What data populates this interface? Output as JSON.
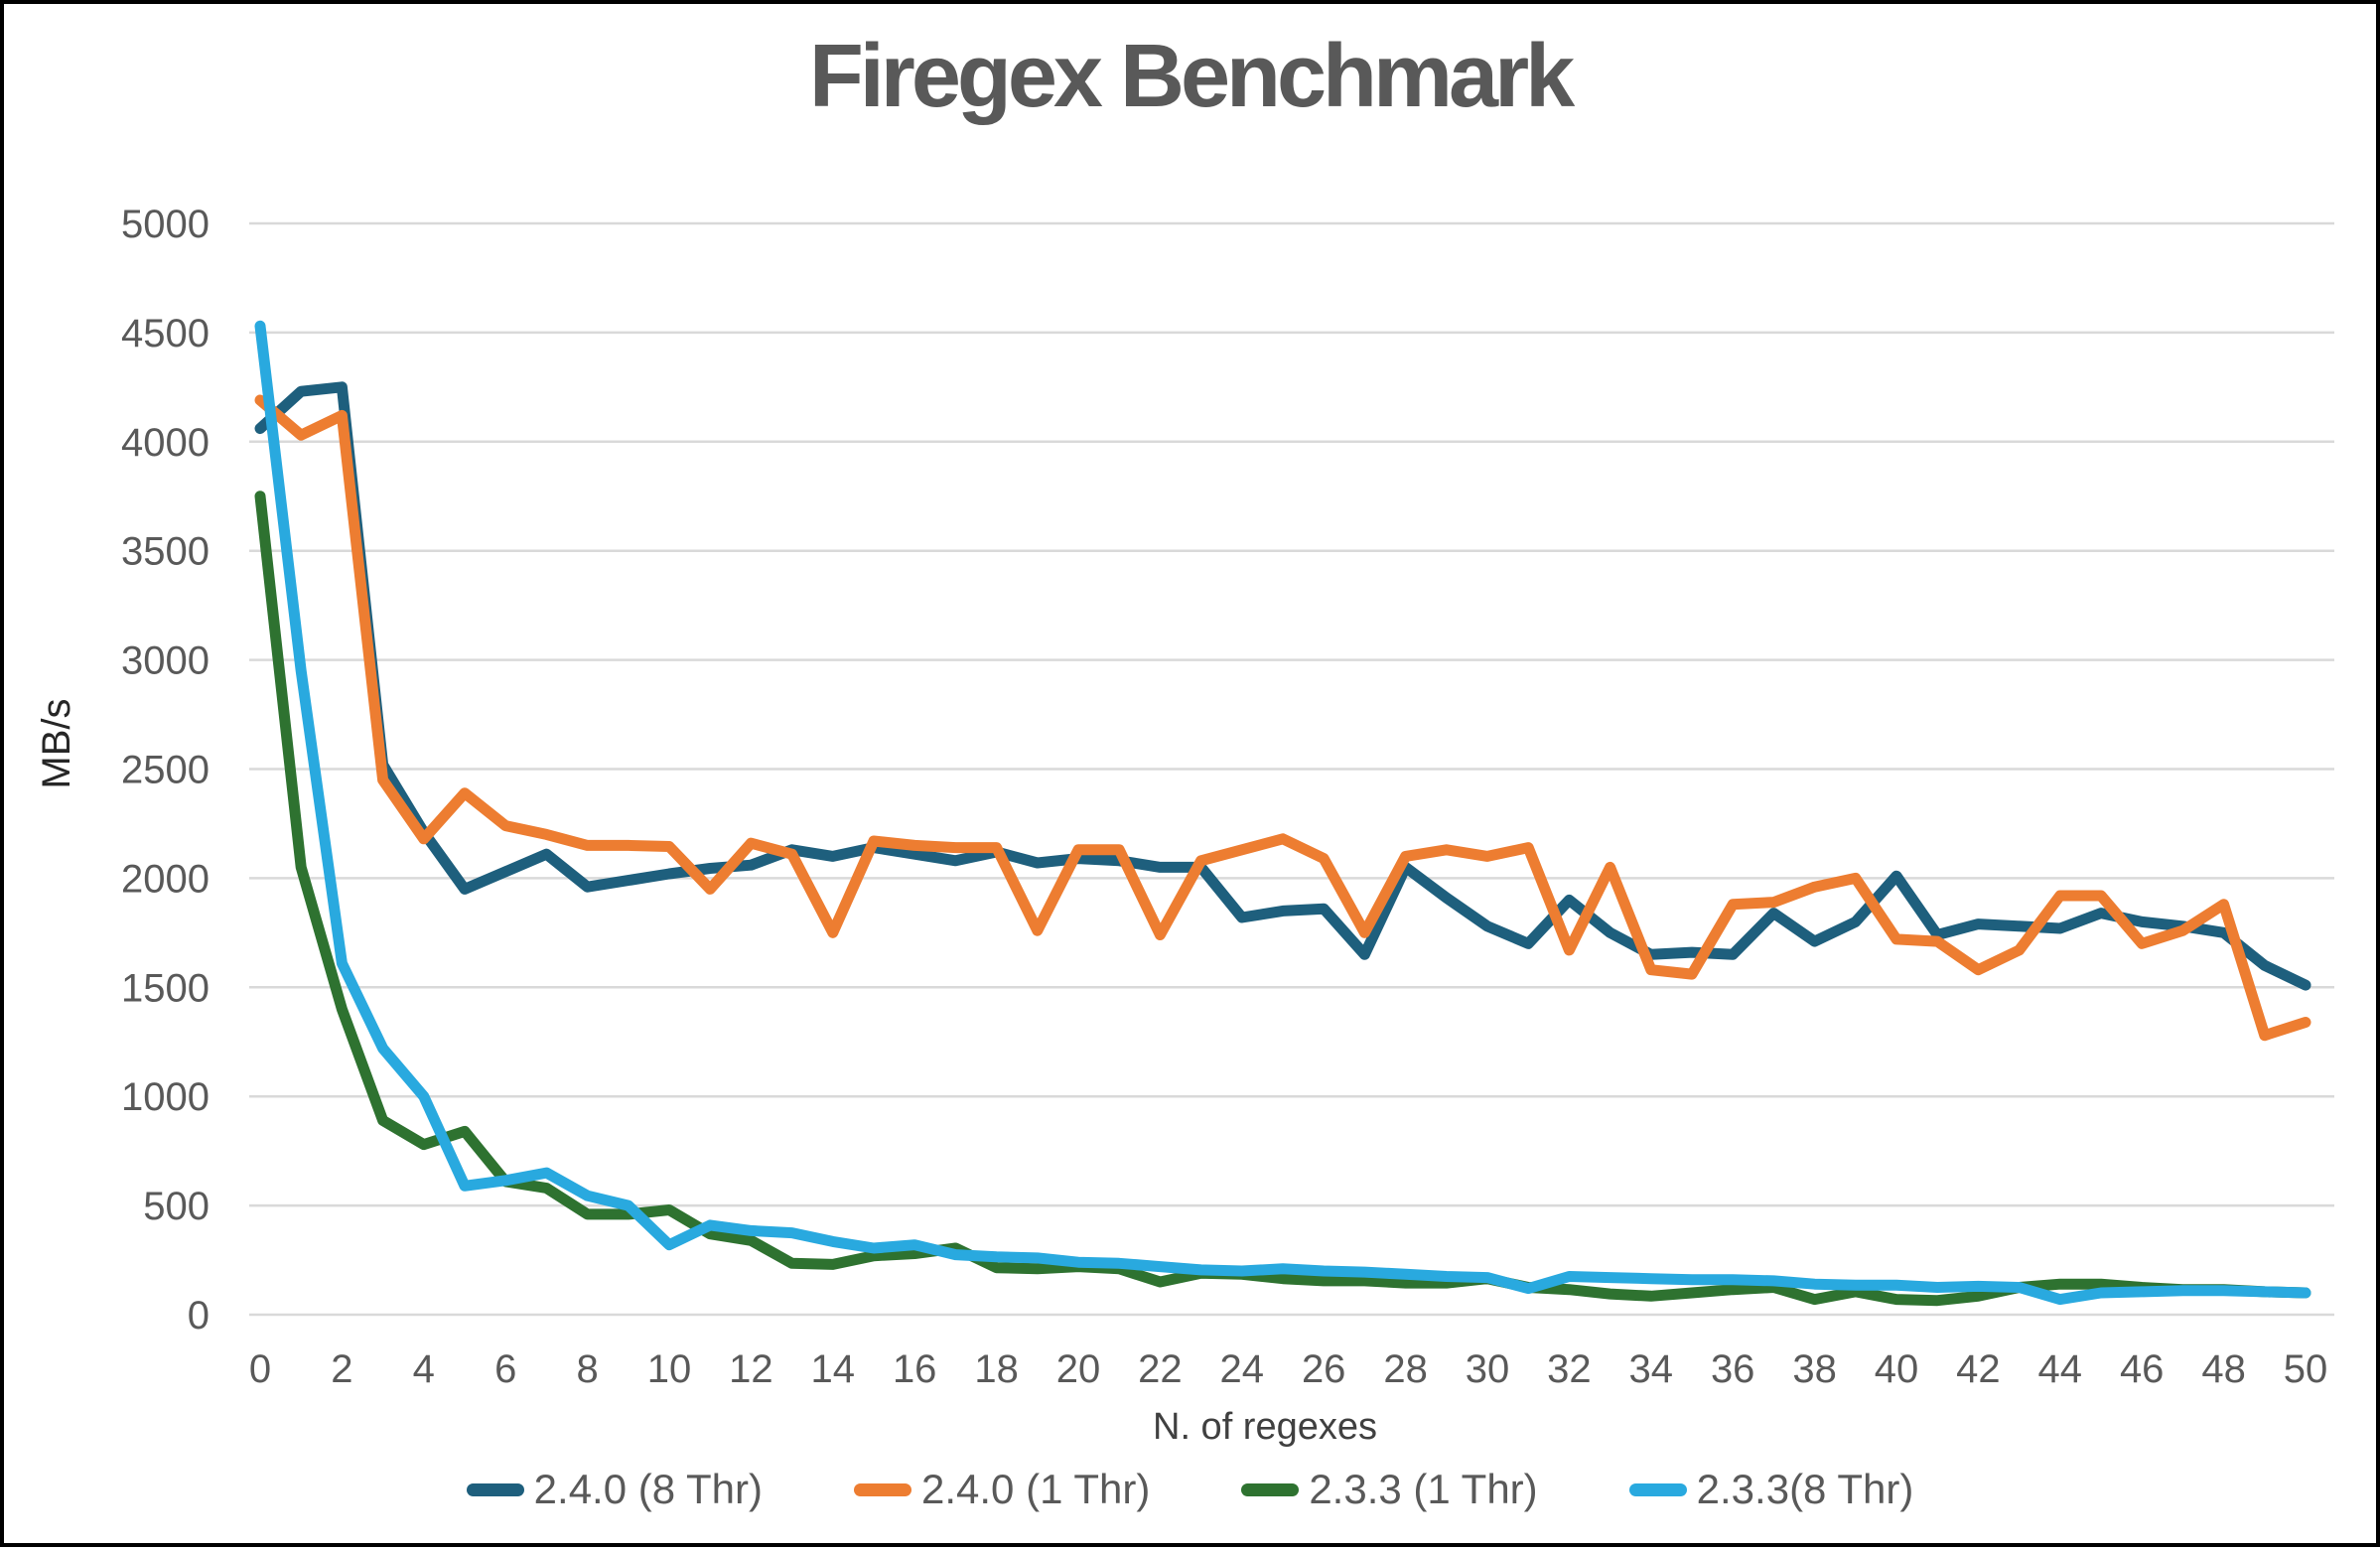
{
  "colors": {
    "title": "#595959",
    "axis_title": "#404040",
    "tick_label": "#595959",
    "gridline": "#D9D9D9",
    "frame_border": "#000000",
    "series_240_8thr": "#1E5F7D",
    "series_240_1thr": "#ED7D31",
    "series_233_1thr": "#2E7230",
    "series_233_8thr": "#29A9DF"
  },
  "chart_data": {
    "type": "line",
    "title": "Firegex Benchmark",
    "xlabel": "N. of regexes",
    "ylabel": "MB/s",
    "grid": "horizontal",
    "legend_position": "bottom",
    "ylim": [
      0,
      5000
    ],
    "y_tick_step": 500,
    "x_tick_step": 2,
    "y_tick_labels": [
      "0",
      "500",
      "1000",
      "1500",
      "2000",
      "2500",
      "3000",
      "3500",
      "4000",
      "4500",
      "5000"
    ],
    "x_tick_labels": [
      "0",
      "2",
      "4",
      "6",
      "8",
      "10",
      "12",
      "14",
      "16",
      "18",
      "20",
      "22",
      "24",
      "26",
      "28",
      "30",
      "32",
      "34",
      "36",
      "38",
      "40",
      "42",
      "44",
      "46",
      "48",
      "50"
    ],
    "x": [
      0,
      1,
      2,
      3,
      4,
      5,
      6,
      7,
      8,
      9,
      10,
      11,
      12,
      13,
      14,
      15,
      16,
      17,
      18,
      19,
      20,
      21,
      22,
      23,
      24,
      25,
      26,
      27,
      28,
      29,
      30,
      31,
      32,
      33,
      34,
      35,
      36,
      37,
      38,
      39,
      40,
      41,
      42,
      43,
      44,
      45,
      46,
      47,
      48,
      49,
      50
    ],
    "series": [
      {
        "name": "2.4.0 (8 Thr)",
        "color": "#1E5F7D",
        "values": [
          4060,
          4230,
          4250,
          2520,
          2210,
          1950,
          2030,
          2110,
          1960,
          1990,
          2020,
          2045,
          2060,
          2130,
          2100,
          2140,
          2110,
          2080,
          2120,
          2070,
          2090,
          2080,
          2050,
          2050,
          1820,
          1850,
          1860,
          1650,
          2050,
          1910,
          1780,
          1700,
          1900,
          1750,
          1650,
          1660,
          1650,
          1840,
          1710,
          1800,
          2010,
          1740,
          1790,
          1780,
          1770,
          1840,
          1800,
          1780,
          1750,
          1600,
          1510
        ]
      },
      {
        "name": "2.4.0 (1 Thr)",
        "color": "#ED7D31",
        "values": [
          4190,
          4030,
          4120,
          2450,
          2180,
          2390,
          2240,
          2200,
          2150,
          2150,
          2145,
          1950,
          2160,
          2110,
          1750,
          2170,
          2150,
          2140,
          2140,
          1760,
          2130,
          2130,
          1740,
          2080,
          2130,
          2180,
          2090,
          1750,
          2100,
          2130,
          2100,
          2140,
          1670,
          2050,
          1580,
          1560,
          1880,
          1890,
          1960,
          2000,
          1720,
          1710,
          1580,
          1670,
          1920,
          1920,
          1700,
          1760,
          1880,
          1280,
          1340
        ]
      },
      {
        "name": "2.3.3 (1 Thr)",
        "color": "#2E7230",
        "values": [
          3750,
          2050,
          1400,
          890,
          780,
          840,
          610,
          580,
          460,
          460,
          480,
          370,
          340,
          235,
          230,
          270,
          280,
          305,
          215,
          210,
          220,
          210,
          150,
          190,
          185,
          165,
          155,
          155,
          145,
          145,
          165,
          125,
          115,
          95,
          85,
          100,
          115,
          125,
          70,
          105,
          70,
          65,
          85,
          125,
          140,
          140,
          125,
          115,
          115,
          105,
          100
        ]
      },
      {
        "name": "2.3.3(8 Thr)",
        "color": "#29A9DF",
        "values": [
          4530,
          2950,
          1610,
          1220,
          1000,
          590,
          615,
          650,
          545,
          500,
          320,
          410,
          385,
          375,
          335,
          305,
          320,
          275,
          265,
          260,
          240,
          235,
          220,
          205,
          200,
          210,
          200,
          195,
          185,
          175,
          170,
          120,
          175,
          170,
          165,
          160,
          160,
          155,
          140,
          135,
          135,
          125,
          130,
          125,
          70,
          100,
          105,
          110,
          110,
          105,
          100
        ]
      }
    ]
  }
}
